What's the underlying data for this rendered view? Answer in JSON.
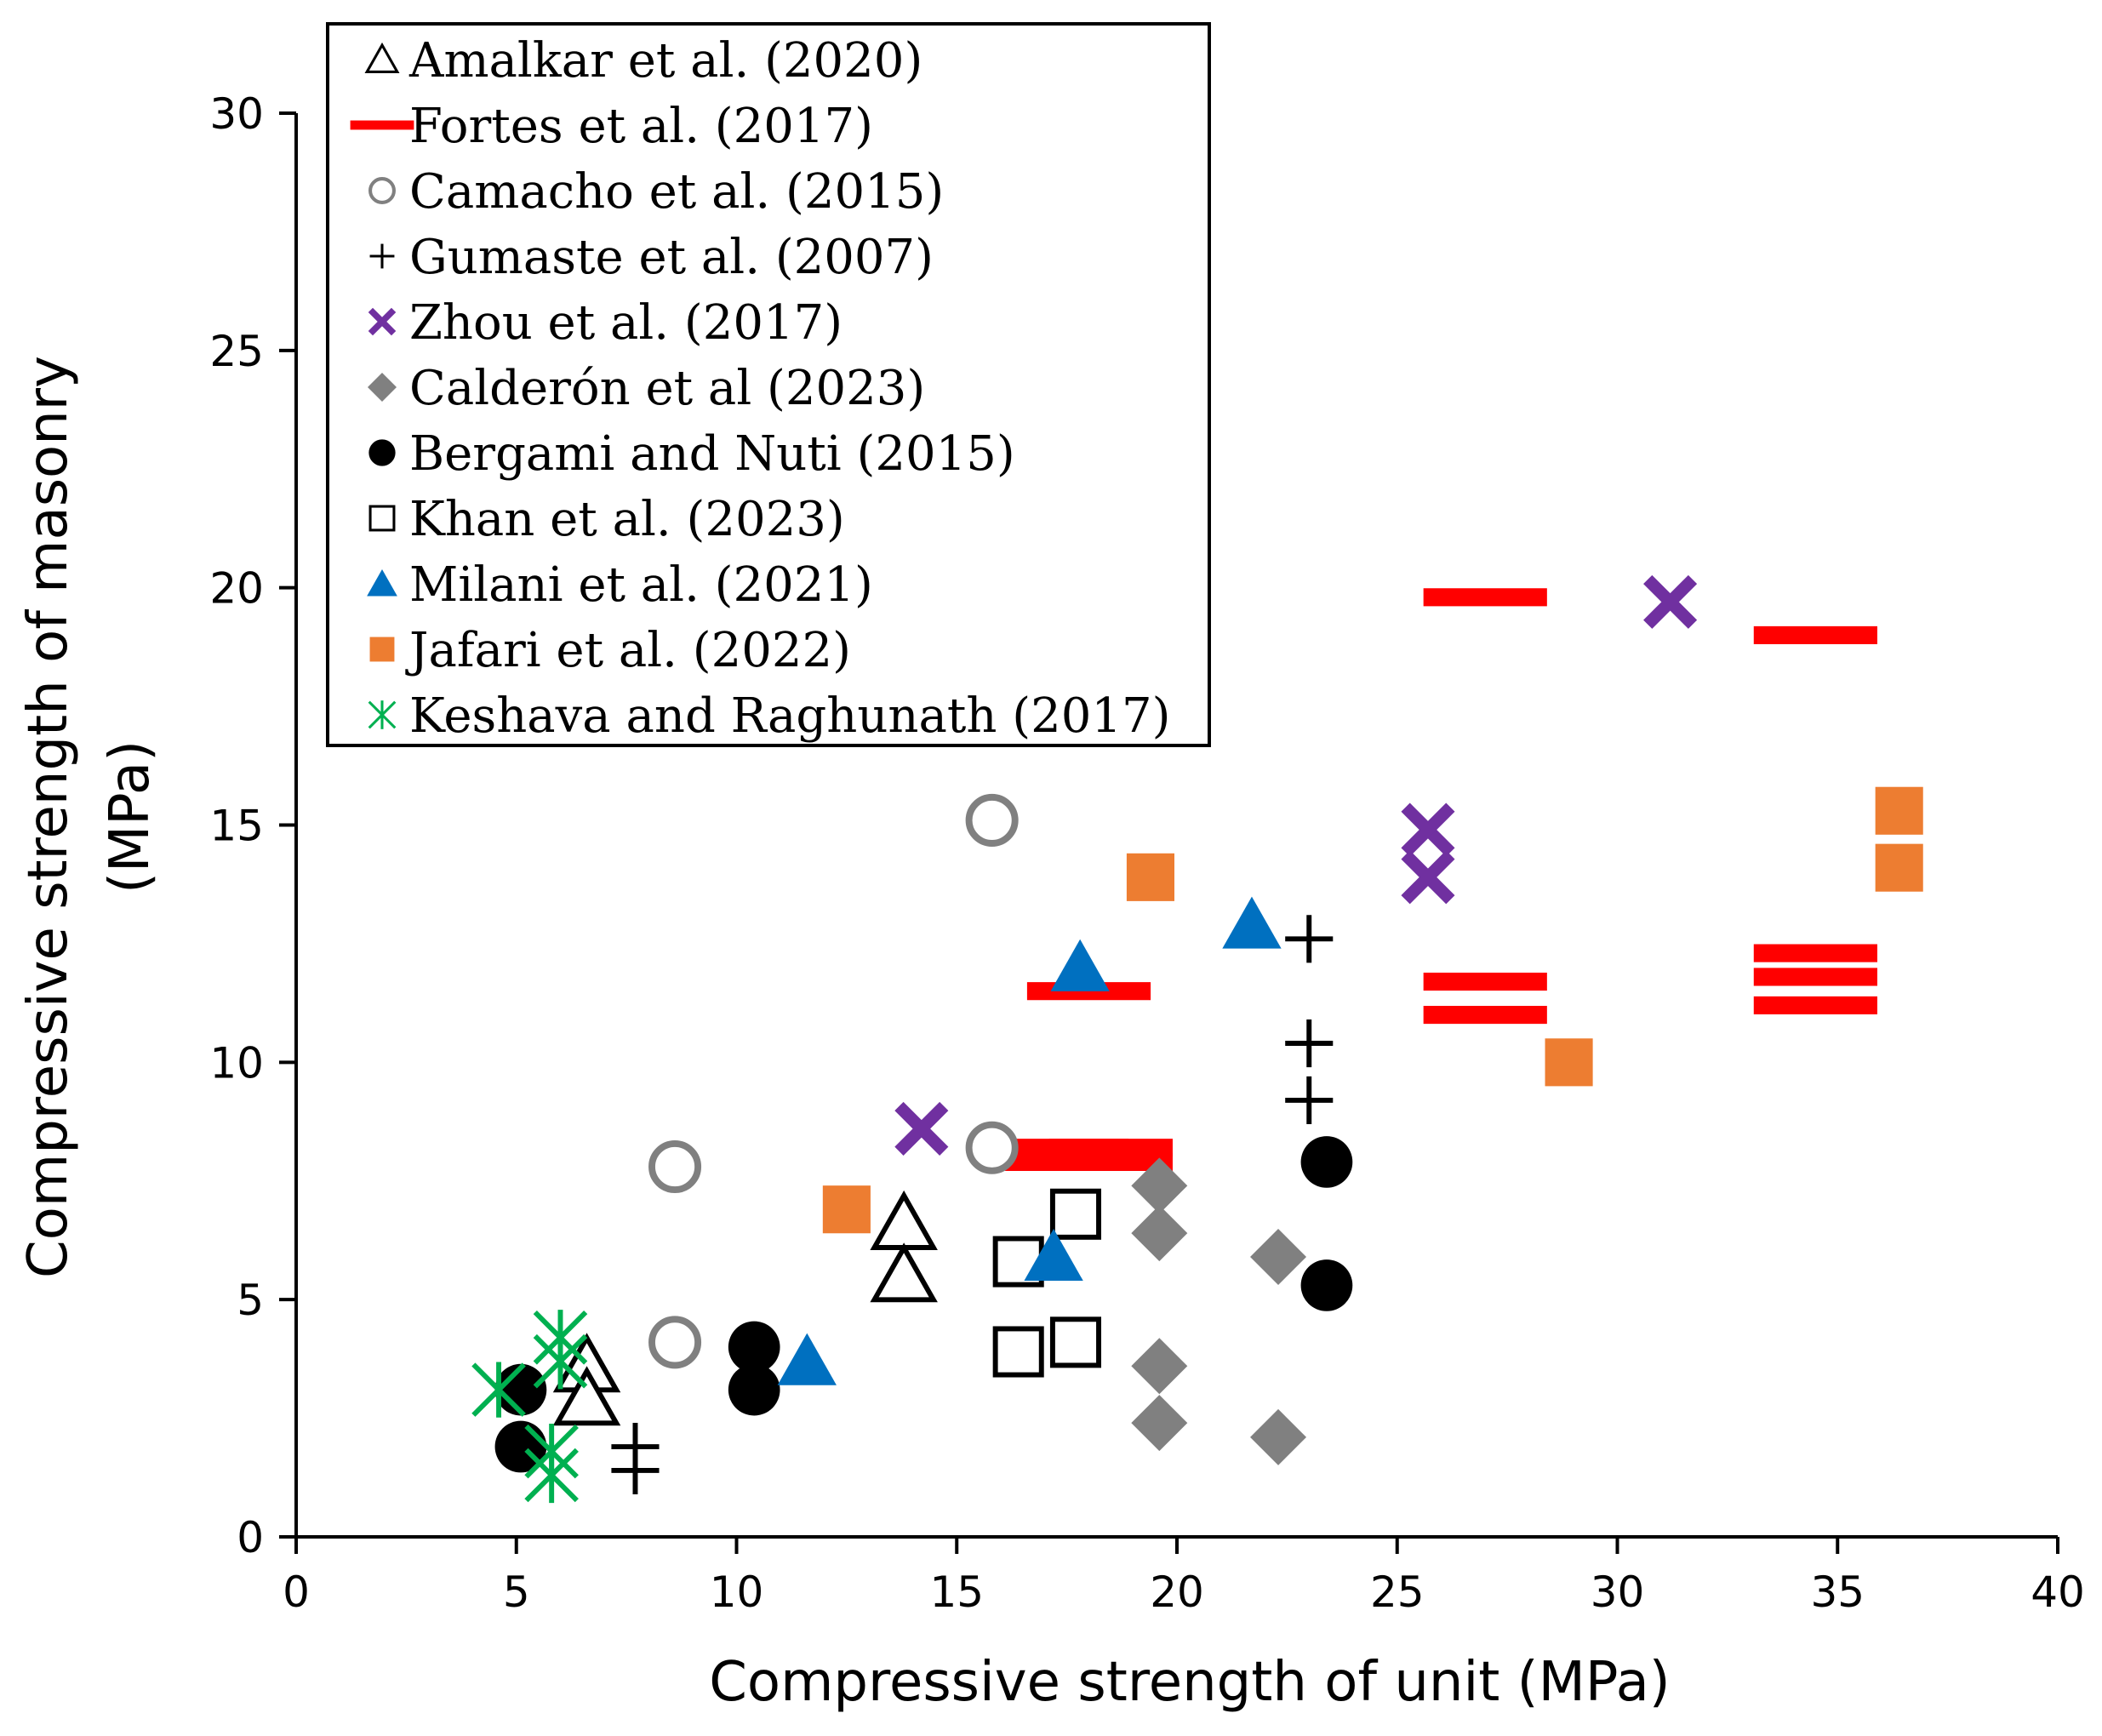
{
  "chart_data": {
    "type": "scatter",
    "title": "",
    "xlabel": "Compressive strength of unit (MPa)",
    "ylabel_lines": [
      "Compressive strength of masonry",
      "(MPa)"
    ],
    "xlim": [
      0,
      40
    ],
    "ylim": [
      0,
      30
    ],
    "x_ticks": [
      0,
      5,
      10,
      15,
      20,
      25,
      30,
      35,
      40
    ],
    "y_ticks": [
      0,
      5,
      10,
      15,
      20,
      25,
      30
    ],
    "grid": false,
    "legend_position": "top-left",
    "series": [
      {
        "name": "Amalkar et al. (2020)",
        "marker": "triangle-open",
        "color": "#000000",
        "points": [
          [
            6.6,
            3.6
          ],
          [
            6.6,
            2.9
          ],
          [
            13.8,
            6.6
          ],
          [
            13.8,
            5.5
          ]
        ]
      },
      {
        "name": "Fortes et al. (2017)",
        "marker": "dash",
        "color": "#ff0000",
        "points": [
          [
            17.5,
            8.2
          ],
          [
            18.5,
            8.2
          ],
          [
            17.5,
            7.9
          ],
          [
            18.5,
            7.9
          ],
          [
            18.0,
            11.5
          ],
          [
            27.0,
            19.8
          ],
          [
            27.0,
            11.7
          ],
          [
            27.0,
            11.0
          ],
          [
            34.5,
            19.0
          ],
          [
            34.5,
            12.3
          ],
          [
            34.5,
            11.8
          ],
          [
            34.5,
            11.2
          ]
        ]
      },
      {
        "name": "Camacho et al. (2015)",
        "marker": "circle-open",
        "color": "#808080",
        "points": [
          [
            8.6,
            7.8
          ],
          [
            8.6,
            4.1
          ],
          [
            15.8,
            15.1
          ],
          [
            15.8,
            8.2
          ]
        ]
      },
      {
        "name": "Gumaste et al. (2007)",
        "marker": "plus",
        "color": "#000000",
        "points": [
          [
            7.7,
            1.9
          ],
          [
            7.7,
            1.4
          ],
          [
            23.0,
            12.6
          ],
          [
            23.0,
            10.4
          ],
          [
            23.0,
            9.2
          ]
        ]
      },
      {
        "name": "Zhou et al. (2017)",
        "marker": "x",
        "color": "#7030a0",
        "points": [
          [
            14.2,
            8.6
          ],
          [
            25.7,
            14.9
          ],
          [
            25.7,
            13.9
          ],
          [
            31.2,
            19.7
          ]
        ]
      },
      {
        "name": "Calderón et al (2023)",
        "marker": "diamond",
        "color": "#808080",
        "points": [
          [
            19.6,
            7.4
          ],
          [
            19.6,
            6.4
          ],
          [
            19.6,
            3.6
          ],
          [
            19.6,
            2.4
          ],
          [
            22.3,
            5.9
          ],
          [
            22.3,
            2.1
          ]
        ]
      },
      {
        "name": "Bergami and Nuti (2015)",
        "marker": "circle",
        "color": "#000000",
        "points": [
          [
            5.1,
            3.1
          ],
          [
            5.1,
            1.9
          ],
          [
            10.4,
            4.0
          ],
          [
            10.4,
            3.1
          ],
          [
            23.4,
            7.9
          ],
          [
            23.4,
            5.3
          ]
        ]
      },
      {
        "name": "Khan et al. (2023)",
        "marker": "square-open",
        "color": "#000000",
        "points": [
          [
            17.7,
            6.8
          ],
          [
            16.4,
            5.8
          ],
          [
            16.4,
            3.9
          ],
          [
            17.7,
            4.1
          ]
        ]
      },
      {
        "name": "Milani et al. (2021)",
        "marker": "triangle",
        "color": "#0070c0",
        "points": [
          [
            11.6,
            3.7
          ],
          [
            17.2,
            5.9
          ],
          [
            17.8,
            12.0
          ],
          [
            21.7,
            12.9
          ]
        ]
      },
      {
        "name": "Jafari et al. (2022)",
        "marker": "square",
        "color": "#ed7d31",
        "points": [
          [
            12.5,
            6.9
          ],
          [
            19.4,
            13.9
          ],
          [
            28.9,
            10.0
          ],
          [
            36.4,
            15.3
          ],
          [
            36.4,
            14.1
          ]
        ]
      },
      {
        "name": "Keshava and Raghunath (2017)",
        "marker": "asterisk",
        "color": "#00b050",
        "points": [
          [
            4.6,
            3.1
          ],
          [
            6.0,
            4.2
          ],
          [
            6.0,
            3.7
          ],
          [
            5.8,
            1.8
          ],
          [
            5.8,
            1.3
          ]
        ]
      }
    ]
  }
}
